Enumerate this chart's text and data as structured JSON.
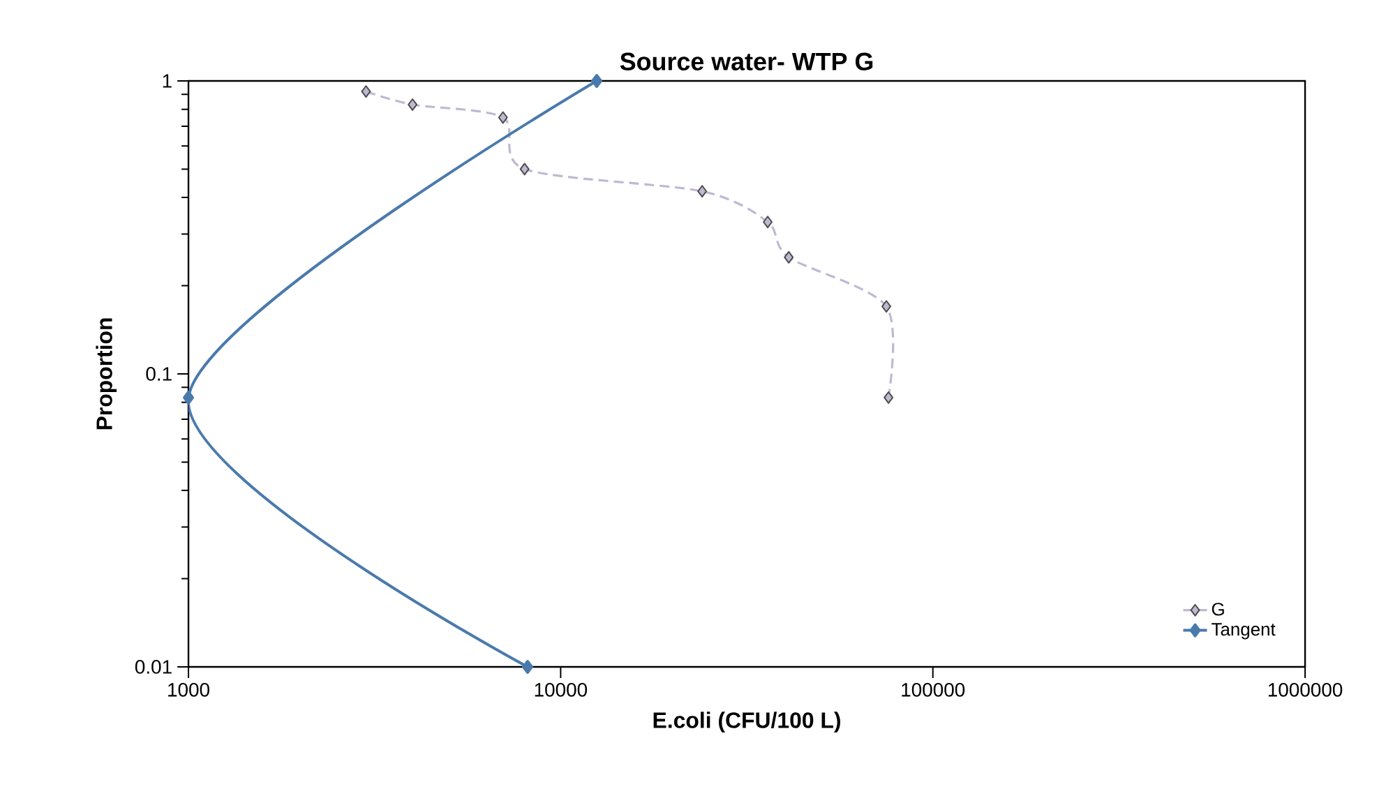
{
  "chart_data": {
    "type": "line",
    "title": "Source water- WTP G",
    "xlabel": "E.coli (CFU/100 L)",
    "ylabel": "Proportion",
    "log": "xy",
    "xlim": [
      1000,
      1000000
    ],
    "ylim": [
      0.01,
      1
    ],
    "xticks": [
      1000,
      10000,
      100000,
      1000000
    ],
    "yticks": [
      0.01,
      0.1,
      1
    ],
    "grid": false,
    "legend": "bottom right",
    "series": [
      {
        "name": "G",
        "color": "#c0b8d2",
        "marker": "diamond",
        "line_style": "dashed",
        "x": [
          3000,
          4000,
          7000,
          8000,
          24000,
          36000,
          41000,
          75000,
          76000
        ],
        "values": [
          0.92,
          0.83,
          0.75,
          0.5,
          0.42,
          0.33,
          0.25,
          0.17,
          0.083
        ]
      },
      {
        "name": "Tangent",
        "color": "#4a7aac",
        "marker": "diamond",
        "line_style": "solid",
        "x": [
          12500,
          1000,
          8150
        ],
        "values": [
          1,
          0.083,
          0.01
        ]
      }
    ]
  }
}
